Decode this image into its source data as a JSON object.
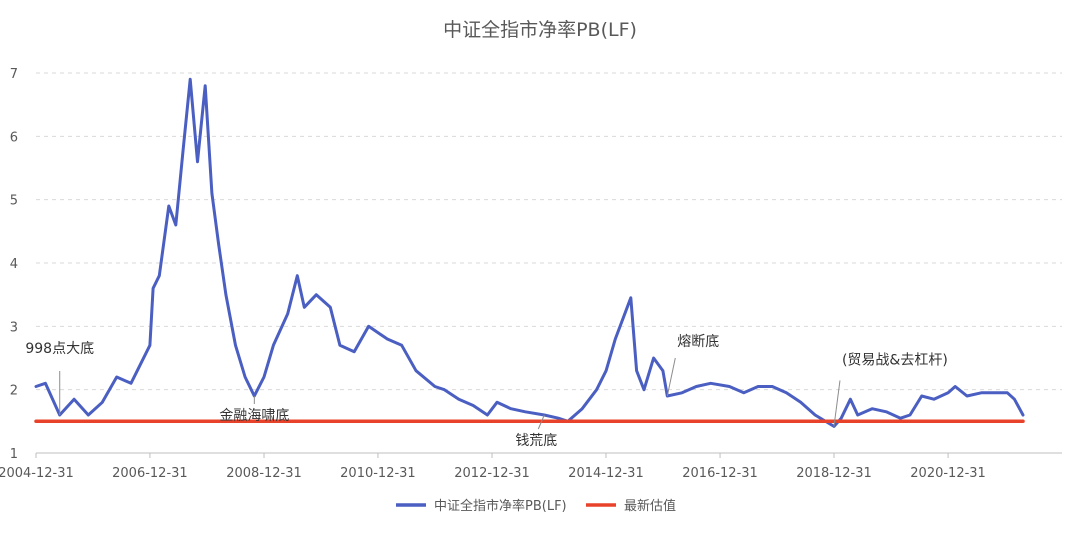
{
  "chart_data": {
    "type": "line",
    "title": "中证全指市净率PB(LF)",
    "xlabel": "",
    "ylabel": "",
    "xlim": [
      "2004-12-31",
      "2022-12-31"
    ],
    "ylim": [
      1,
      7
    ],
    "yticks": [
      1,
      2,
      3,
      4,
      5,
      6,
      7
    ],
    "xtick_labels": [
      "2004-12-31",
      "2006-12-31",
      "2008-12-31",
      "2010-12-31",
      "2012-12-31",
      "2014-12-31",
      "2016-12-31",
      "2018-12-31",
      "2020-12-31"
    ],
    "grid": "horizontal-dashed",
    "legend": "bottom-center",
    "series": [
      {
        "name": "中证全指市净率PB(LF)",
        "color": "#4a5fc1",
        "points": [
          [
            "2004-12-31",
            2.05
          ],
          [
            "2005-03-01",
            2.1
          ],
          [
            "2005-06-01",
            1.6
          ],
          [
            "2005-09-01",
            1.85
          ],
          [
            "2005-12-01",
            1.6
          ],
          [
            "2006-03-01",
            1.8
          ],
          [
            "2006-06-01",
            2.2
          ],
          [
            "2006-09-01",
            2.1
          ],
          [
            "2006-12-31",
            2.7
          ],
          [
            "2007-01-20",
            3.6
          ],
          [
            "2007-03-01",
            3.8
          ],
          [
            "2007-05-01",
            4.9
          ],
          [
            "2007-06-15",
            4.6
          ],
          [
            "2007-08-01",
            5.8
          ],
          [
            "2007-09-15",
            6.9
          ],
          [
            "2007-11-01",
            5.6
          ],
          [
            "2007-12-20",
            6.8
          ],
          [
            "2008-02-01",
            5.1
          ],
          [
            "2008-03-15",
            4.3
          ],
          [
            "2008-05-01",
            3.5
          ],
          [
            "2008-07-01",
            2.7
          ],
          [
            "2008-09-01",
            2.2
          ],
          [
            "2008-10-30",
            1.9
          ],
          [
            "2008-12-31",
            2.2
          ],
          [
            "2009-03-01",
            2.7
          ],
          [
            "2009-06-01",
            3.2
          ],
          [
            "2009-08-01",
            3.8
          ],
          [
            "2009-09-15",
            3.3
          ],
          [
            "2009-12-01",
            3.5
          ],
          [
            "2010-03-01",
            3.3
          ],
          [
            "2010-05-01",
            2.7
          ],
          [
            "2010-08-01",
            2.6
          ],
          [
            "2010-11-01",
            3.0
          ],
          [
            "2011-03-01",
            2.8
          ],
          [
            "2011-06-01",
            2.7
          ],
          [
            "2011-09-01",
            2.3
          ],
          [
            "2011-12-31",
            2.05
          ],
          [
            "2012-03-01",
            2.0
          ],
          [
            "2012-06-01",
            1.85
          ],
          [
            "2012-09-01",
            1.75
          ],
          [
            "2012-12-01",
            1.6
          ],
          [
            "2013-02-01",
            1.8
          ],
          [
            "2013-05-01",
            1.7
          ],
          [
            "2013-08-01",
            1.65
          ],
          [
            "2013-12-01",
            1.6
          ],
          [
            "2014-03-01",
            1.55
          ],
          [
            "2014-05-01",
            1.5
          ],
          [
            "2014-08-01",
            1.7
          ],
          [
            "2014-11-01",
            2.0
          ],
          [
            "2015-01-01",
            2.3
          ],
          [
            "2015-03-01",
            2.8
          ],
          [
            "2015-06-08",
            3.45
          ],
          [
            "2015-07-15",
            2.3
          ],
          [
            "2015-09-01",
            2.0
          ],
          [
            "2015-11-01",
            2.5
          ],
          [
            "2015-12-31",
            2.3
          ],
          [
            "2016-01-28",
            1.9
          ],
          [
            "2016-05-01",
            1.95
          ],
          [
            "2016-08-01",
            2.05
          ],
          [
            "2016-11-01",
            2.1
          ],
          [
            "2017-03-01",
            2.05
          ],
          [
            "2017-06-01",
            1.95
          ],
          [
            "2017-09-01",
            2.05
          ],
          [
            "2017-12-01",
            2.05
          ],
          [
            "2018-03-01",
            1.95
          ],
          [
            "2018-06-01",
            1.8
          ],
          [
            "2018-09-01",
            1.6
          ],
          [
            "2018-12-31",
            1.42
          ],
          [
            "2019-02-15",
            1.55
          ],
          [
            "2019-04-15",
            1.85
          ],
          [
            "2019-06-01",
            1.6
          ],
          [
            "2019-09-01",
            1.7
          ],
          [
            "2019-12-01",
            1.65
          ],
          [
            "2020-03-01",
            1.55
          ],
          [
            "2020-05-01",
            1.6
          ],
          [
            "2020-07-15",
            1.9
          ],
          [
            "2020-10-01",
            1.85
          ],
          [
            "2020-12-31",
            1.95
          ],
          [
            "2021-02-15",
            2.05
          ],
          [
            "2021-05-01",
            1.9
          ],
          [
            "2021-08-01",
            1.95
          ],
          [
            "2021-11-01",
            1.95
          ],
          [
            "2022-01-15",
            1.95
          ],
          [
            "2022-03-01",
            1.85
          ],
          [
            "2022-04-25",
            1.6
          ]
        ]
      },
      {
        "name": "最新估值",
        "color": "#e8432a",
        "points": [
          [
            "2004-12-31",
            1.5
          ],
          [
            "2022-04-25",
            1.5
          ]
        ]
      }
    ],
    "annotations": [
      {
        "text": "998点大底",
        "x": "2005-06-01",
        "y": 1.6
      },
      {
        "text": "金融海啸底",
        "x": "2008-10-30",
        "y": 1.9
      },
      {
        "text": "钱荒底",
        "x": "2013-12-01",
        "y": 1.6
      },
      {
        "text": "熔断底",
        "x": "2016-01-28",
        "y": 1.9
      },
      {
        "text": "(贸易战&去杠杆)",
        "x": "2018-12-31",
        "y": 1.42
      }
    ]
  }
}
